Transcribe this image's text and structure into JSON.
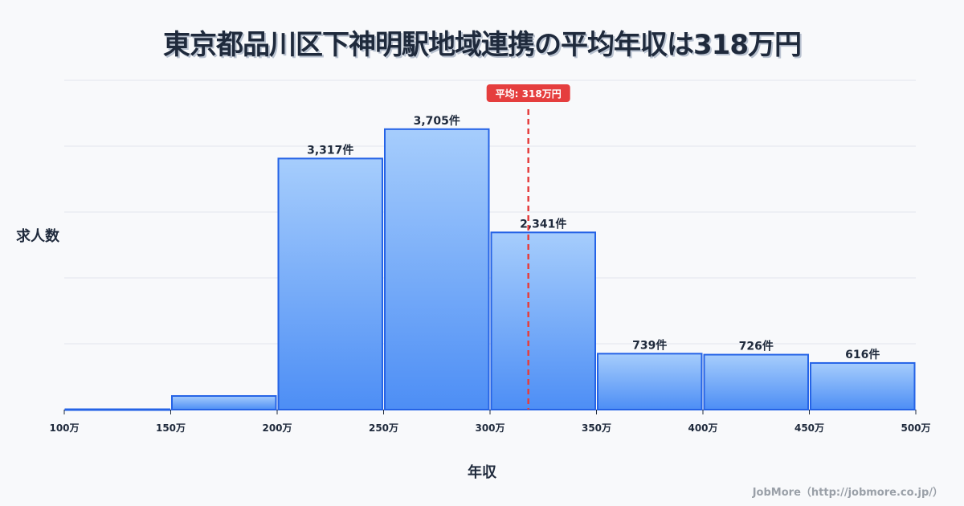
{
  "title": "東京都品川区下神明駅地域連携の平均年収は318万円",
  "credit": "JobMore（http://jobmore.co.jp/）",
  "colors": {
    "bar_top": "#a6cdfc",
    "bar_bottom": "#4d8ef5",
    "bar_border": "#2563e6",
    "mean_line": "#e53e3e",
    "grid": "#e2e5ec",
    "text": "#1f2a3c"
  },
  "chart_data": {
    "type": "bar",
    "title": "東京都品川区下神明駅地域連携の平均年収は318万円",
    "xlabel": "年収",
    "ylabel": "求人数",
    "x_ticks": [
      "100万",
      "150万",
      "200万",
      "250万",
      "300万",
      "350万",
      "400万",
      "450万",
      "500万"
    ],
    "categories": [
      "100-150万",
      "150-200万",
      "200-250万",
      "250-300万",
      "300-350万",
      "350-400万",
      "400-450万",
      "450-500万"
    ],
    "values": [
      5,
      180,
      3317,
      3705,
      2341,
      739,
      726,
      616
    ],
    "labels": [
      "",
      "",
      "3,317件",
      "3,705件",
      "2,341件",
      "739件",
      "726件",
      "616件"
    ],
    "ylim": [
      0,
      4350
    ],
    "grid": true,
    "mean": {
      "value": 318,
      "label": "平均: 318万円"
    }
  }
}
